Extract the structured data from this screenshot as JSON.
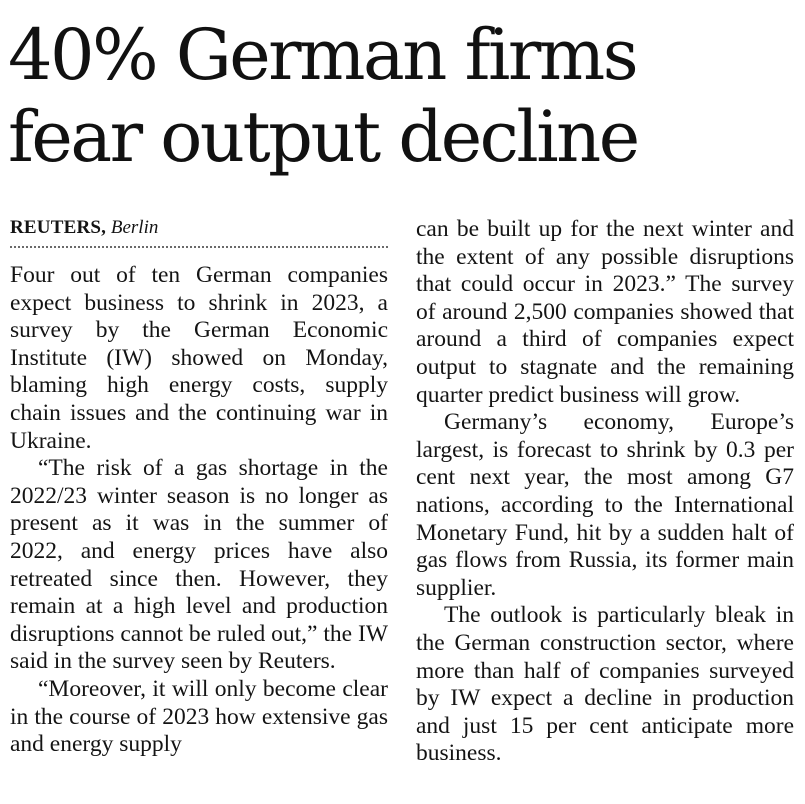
{
  "headline": {
    "line1": "40% German firms",
    "line2": "fear output decline"
  },
  "byline": {
    "agency": "REUTERS,",
    "city": "Berlin"
  },
  "left_column": {
    "paragraphs": [
      "Four out of ten German companies expect business to shrink in 2023, a survey by the German Economic Institute (IW) showed on Monday, blaming high energy costs, supply chain issues and the continuing war in Ukraine.",
      "“The risk of a gas shortage in the 2022/23 winter season is no longer as present as it was in the summer of 2022, and energy prices have also retreated since then. However, they remain at a high level and production disruptions cannot be ruled out,” the IW said in the survey seen by Reuters.",
      "“Moreover, it will only become clear in the course of 2023 how extensive gas and energy supply"
    ]
  },
  "right_column": {
    "paragraphs": [
      "can be built up for the next winter and the extent of any possible disruptions that could occur in 2023.” The survey of around 2,500 companies showed that around a third of companies expect output to stagnate and the remaining quarter predict business will grow.",
      "Germany’s economy, Europe’s largest, is forecast to shrink by 0.3 per cent next year, the most among G7 nations, according to the International Monetary Fund, hit by a sudden halt of gas flows from Russia, its former main supplier.",
      "The outlook is particularly bleak in the German construction sector, where more than half of companies surveyed by IW expect a decline in production and just 15 per cent anticipate more business."
    ]
  }
}
